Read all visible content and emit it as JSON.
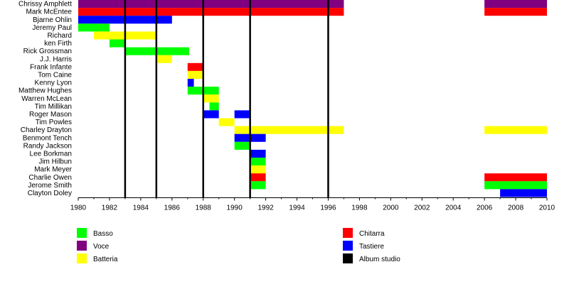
{
  "chart_data": {
    "type": "timeline",
    "title": "",
    "xlabel": "",
    "ylabel": "",
    "xlim": [
      1980,
      2010
    ],
    "x_ticks": [
      "1980",
      "1982",
      "1984",
      "1986",
      "1988",
      "1990",
      "1992",
      "1994",
      "1996",
      "1998",
      "2000",
      "2002",
      "2004",
      "2006",
      "2008",
      "2010"
    ],
    "grid": false,
    "legend_position": "bottom",
    "categories": [
      {
        "key": "Basso",
        "label": "Basso",
        "color": "#00ff00"
      },
      {
        "key": "Voce",
        "label": "Voce",
        "color": "#800080"
      },
      {
        "key": "Batteria",
        "label": "Batteria",
        "color": "#ffff00"
      },
      {
        "key": "Chitarra",
        "label": "Chitarra",
        "color": "#ff0000"
      },
      {
        "key": "Tastiere",
        "label": "Tastiere",
        "color": "#0000ff"
      },
      {
        "key": "Album studio",
        "label": "Album studio",
        "color": "#000000"
      }
    ],
    "members": [
      {
        "name": "Chrissy Amphlett",
        "periods": [
          {
            "role": "Voce",
            "start": 1980,
            "end": 1997
          },
          {
            "role": "Voce",
            "start": 2006,
            "end": 2010
          }
        ]
      },
      {
        "name": "Mark McEntee",
        "periods": [
          {
            "role": "Chitarra",
            "start": 1980,
            "end": 1997
          },
          {
            "role": "Chitarra",
            "start": 2006,
            "end": 2010
          }
        ]
      },
      {
        "name": "Bjarne Ohlin",
        "periods": [
          {
            "role": "Tastiere",
            "start": 1980,
            "end": 1986
          }
        ]
      },
      {
        "name": "Jeremy Paul",
        "periods": [
          {
            "role": "Basso",
            "start": 1980,
            "end": 1982
          }
        ]
      },
      {
        "name": "Richard",
        "periods": [
          {
            "role": "Batteria",
            "start": 1981,
            "end": 1985
          }
        ]
      },
      {
        "name": "ken Firth",
        "periods": [
          {
            "role": "Basso",
            "start": 1982,
            "end": 1983
          }
        ]
      },
      {
        "name": "Rick Grossman",
        "periods": [
          {
            "role": "Basso",
            "start": 1983,
            "end": 1987.1
          }
        ]
      },
      {
        "name": "J.J. Harris",
        "periods": [
          {
            "role": "Batteria",
            "start": 1985,
            "end": 1986
          }
        ]
      },
      {
        "name": "Frank Infante",
        "periods": [
          {
            "role": "Chitarra",
            "start": 1987,
            "end": 1988
          }
        ]
      },
      {
        "name": "Tom Caine",
        "periods": [
          {
            "role": "Batteria",
            "start": 1987,
            "end": 1988
          }
        ]
      },
      {
        "name": "Kenny Lyon",
        "periods": [
          {
            "role": "Tastiere",
            "start": 1987,
            "end": 1987.4
          }
        ]
      },
      {
        "name": "Matthew Hughes",
        "periods": [
          {
            "role": "Basso",
            "start": 1987,
            "end": 1989
          }
        ]
      },
      {
        "name": "Warren McLean",
        "periods": [
          {
            "role": "Batteria",
            "start": 1988,
            "end": 1989
          }
        ]
      },
      {
        "name": "Tim Millikan",
        "periods": [
          {
            "role": "Basso",
            "start": 1988.4,
            "end": 1989
          }
        ]
      },
      {
        "name": "Roger Mason",
        "periods": [
          {
            "role": "Tastiere",
            "start": 1988,
            "end": 1989
          },
          {
            "role": "Tastiere",
            "start": 1990,
            "end": 1991
          }
        ]
      },
      {
        "name": "Tim Powles",
        "periods": [
          {
            "role": "Batteria",
            "start": 1989,
            "end": 1990
          }
        ]
      },
      {
        "name": "Charley Drayton",
        "periods": [
          {
            "role": "Batteria",
            "start": 1990,
            "end": 1997
          },
          {
            "role": "Batteria",
            "start": 2006,
            "end": 2010
          }
        ]
      },
      {
        "name": "Benmont Tench",
        "periods": [
          {
            "role": "Tastiere",
            "start": 1990,
            "end": 1992
          }
        ]
      },
      {
        "name": "Randy Jackson",
        "periods": [
          {
            "role": "Basso",
            "start": 1990,
            "end": 1991
          }
        ]
      },
      {
        "name": "Lee Borkman",
        "periods": [
          {
            "role": "Tastiere",
            "start": 1991,
            "end": 1992
          }
        ]
      },
      {
        "name": "Jim Hilbun",
        "periods": [
          {
            "role": "Basso",
            "start": 1991,
            "end": 1992
          }
        ]
      },
      {
        "name": "Mark Meyer",
        "periods": [
          {
            "role": "Batteria",
            "start": 1991,
            "end": 1992
          }
        ]
      },
      {
        "name": "Charlie Owen",
        "periods": [
          {
            "role": "Chitarra",
            "start": 1991,
            "end": 1992
          },
          {
            "role": "Chitarra",
            "start": 2006,
            "end": 2010
          }
        ]
      },
      {
        "name": "Jerome Smith",
        "periods": [
          {
            "role": "Basso",
            "start": 1991,
            "end": 1992
          },
          {
            "role": "Basso",
            "start": 2006,
            "end": 2010
          }
        ]
      },
      {
        "name": "Clayton Doley",
        "periods": [
          {
            "role": "Tastiere",
            "start": 2007,
            "end": 2010
          }
        ]
      }
    ],
    "studio_albums": [
      1983,
      1985,
      1988,
      1991,
      1996
    ]
  }
}
